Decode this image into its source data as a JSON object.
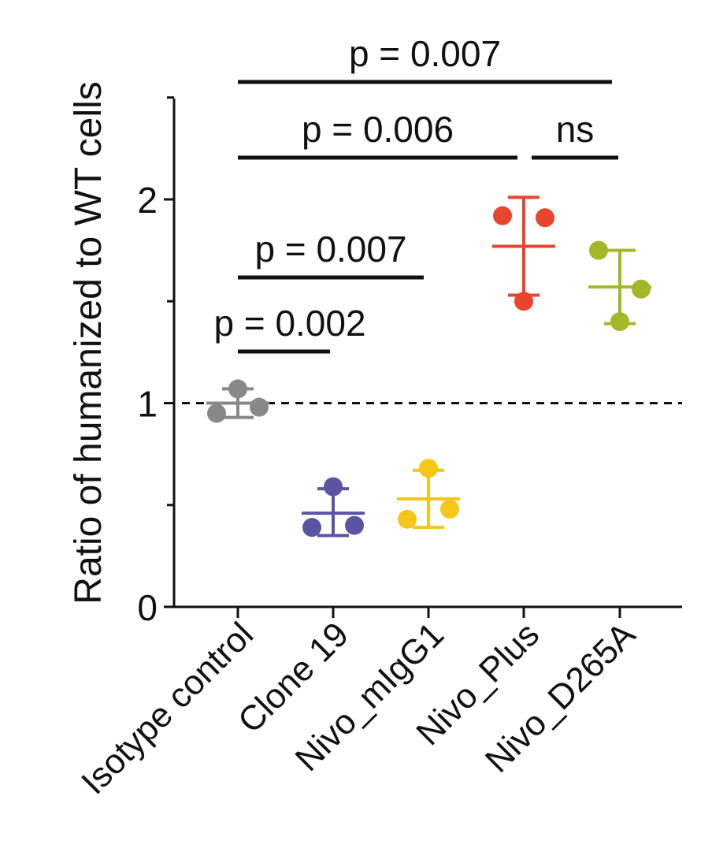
{
  "chart_data": {
    "type": "scatter",
    "ylabel": "Ratio of humanized to WT cells",
    "xlabel": "",
    "ylim": [
      0,
      2.5
    ],
    "yticks": [
      0,
      1,
      2
    ],
    "ytick_labels": [
      "0",
      "1",
      "2"
    ],
    "categories": [
      "Isotype control",
      "Clone 19",
      "Nivo_mIgG1",
      "Nivo_Plus",
      "Nivo_D265A"
    ],
    "reference_line": {
      "y": 1,
      "style": "dashed"
    },
    "groups": [
      {
        "category": "Isotype control",
        "color": "#888888",
        "points": [
          0.95,
          1.07,
          0.98
        ],
        "mean": 1.0,
        "error_low": 0.93,
        "error_high": 1.07
      },
      {
        "category": "Clone 19",
        "color": "#5b54a4",
        "points": [
          0.39,
          0.59,
          0.4
        ],
        "mean": 0.46,
        "error_low": 0.35,
        "error_high": 0.58
      },
      {
        "category": "Nivo_mIgG1",
        "color": "#f5c518",
        "points": [
          0.43,
          0.68,
          0.48
        ],
        "mean": 0.53,
        "error_low": 0.39,
        "error_high": 0.67
      },
      {
        "category": "Nivo_Plus",
        "color": "#e8452c",
        "points": [
          1.92,
          1.5,
          1.91
        ],
        "mean": 1.77,
        "error_low": 1.53,
        "error_high": 2.01
      },
      {
        "category": "Nivo_D265A",
        "color": "#a3b826",
        "points": [
          1.75,
          1.4,
          1.56
        ],
        "mean": 1.57,
        "error_low": 1.39,
        "error_high": 1.75
      }
    ],
    "annotations": [
      {
        "label": "p = 0.007",
        "from": "Isotype control",
        "to": "Nivo_D265A",
        "level": 0
      },
      {
        "label": "p = 0.006",
        "from": "Isotype control",
        "to": "Nivo_Plus",
        "level": 1
      },
      {
        "label": "ns",
        "from": "Nivo_Plus",
        "to": "Nivo_D265A",
        "level": 1
      },
      {
        "label": "p = 0.007",
        "from": "Isotype control",
        "to": "Nivo_mIgG1",
        "level": 2
      },
      {
        "label": "p = 0.002",
        "from": "Isotype control",
        "to": "Clone 19",
        "level": 3
      }
    ]
  }
}
